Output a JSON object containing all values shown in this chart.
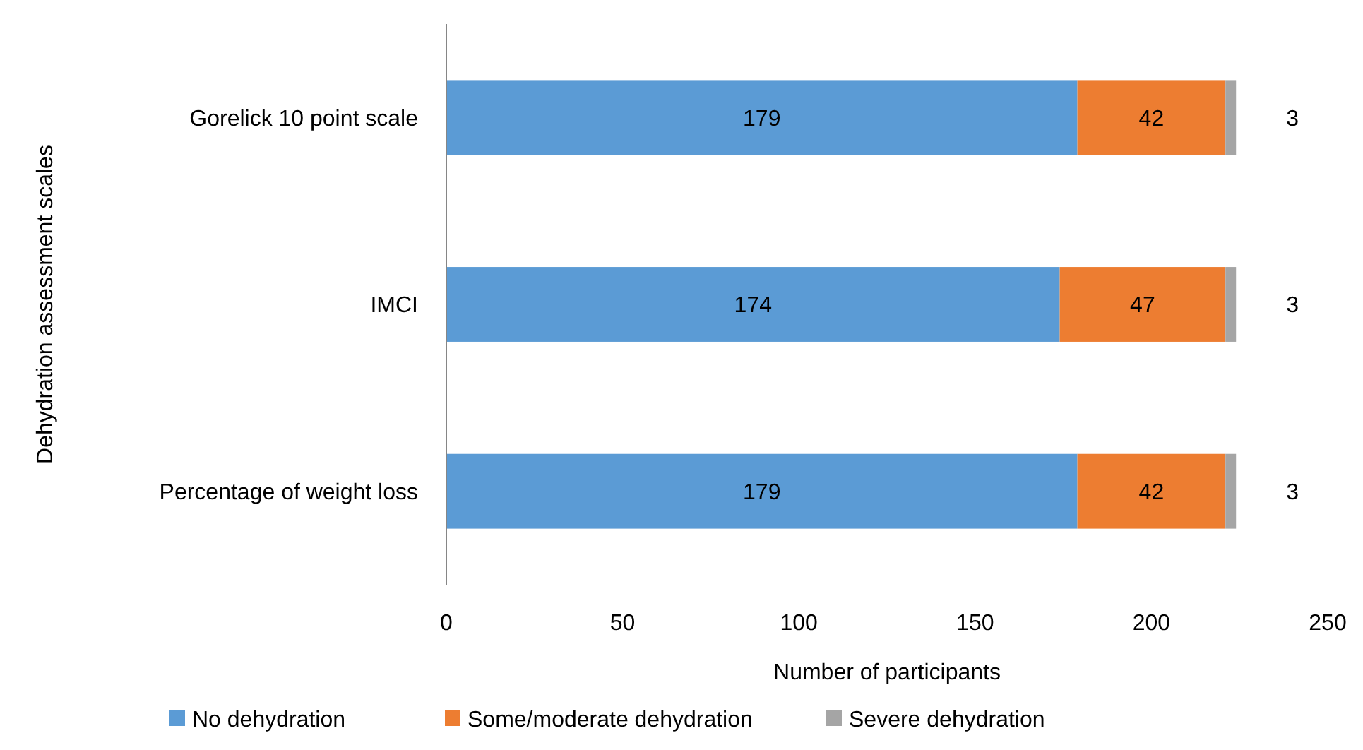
{
  "chart_data": {
    "type": "bar",
    "orientation": "horizontal",
    "stacked": true,
    "xlabel": "Number of participants",
    "ylabel": "Dehydration assessment scales",
    "categories": [
      "Gorelick 10 point scale",
      "IMCI",
      "Percentage of weight loss"
    ],
    "series": [
      {
        "name": "No dehydration",
        "color": "#5b9bd5",
        "values": [
          179,
          174,
          179
        ]
      },
      {
        "name": "Some/moderate dehydration",
        "color": "#ed7d31",
        "values": [
          42,
          47,
          42
        ]
      },
      {
        "name": "Severe dehydration",
        "color": "#a5a5a5",
        "values": [
          3,
          3,
          3
        ]
      }
    ],
    "xlim": [
      0,
      250
    ],
    "xticks": [
      0,
      50,
      100,
      150,
      200,
      250
    ],
    "data_labels": true,
    "grid": false,
    "legend": "bottom"
  }
}
